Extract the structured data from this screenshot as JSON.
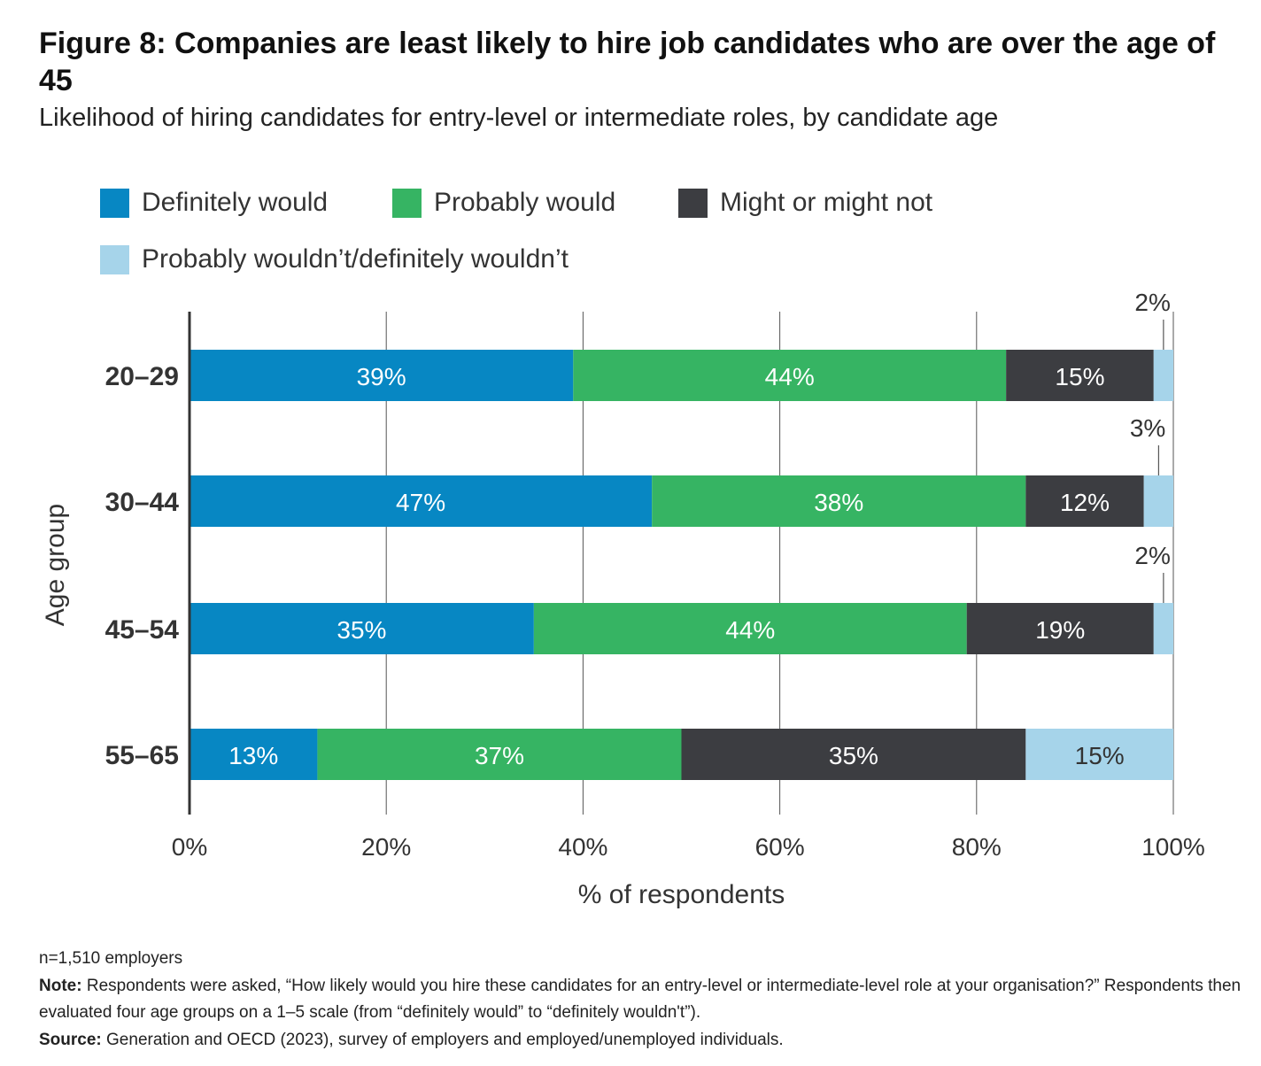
{
  "title": "Figure 8: Companies are least likely to hire job candidates who are over the age of 45",
  "subtitle": "Likelihood of hiring candidates for entry-level or intermediate roles, by candidate age",
  "chart_data": {
    "type": "bar",
    "orientation": "horizontal",
    "stacked": true,
    "categories": [
      "20–29",
      "30–44",
      "45–54",
      "55–65"
    ],
    "series": [
      {
        "name": "Definitely would",
        "color": "#0787c3",
        "values": [
          39,
          47,
          35,
          13
        ],
        "labels": [
          "39%",
          "47%",
          "35%",
          "13%"
        ]
      },
      {
        "name": "Probably would",
        "color": "#36b463",
        "values": [
          44,
          38,
          44,
          37
        ],
        "labels": [
          "44%",
          "38%",
          "44%",
          "37%"
        ]
      },
      {
        "name": "Might or might not",
        "color": "#3c3d41",
        "values": [
          15,
          12,
          19,
          35
        ],
        "labels": [
          "15%",
          "12%",
          "19%",
          "35%"
        ]
      },
      {
        "name": "Probably wouldn’t/definitely wouldn’t",
        "color": "#a6d4ea",
        "values": [
          2,
          3,
          2,
          15
        ],
        "labels": [
          "2%",
          "3%",
          "2%",
          "15%"
        ]
      }
    ],
    "xlabel": "% of respondents",
    "ylabel": "Age group",
    "xlim": [
      0,
      100
    ],
    "xticks": [
      "0%",
      "20%",
      "40%",
      "60%",
      "80%",
      "100%"
    ],
    "grid": true,
    "legend_position": "top"
  },
  "footer": {
    "n": "n=1,510 employers",
    "note_label": "Note:",
    "note_text": " Respondents were asked, “How likely would you hire these candidates for an entry-level or intermediate-level role at your organisation?” Respondents then evaluated four age groups on a 1–5 scale (from “definitely would” to “definitely wouldn't”).",
    "source_label": "Source:",
    "source_text": " Generation and OECD (2023), survey of employers and employed/unemployed individuals."
  }
}
